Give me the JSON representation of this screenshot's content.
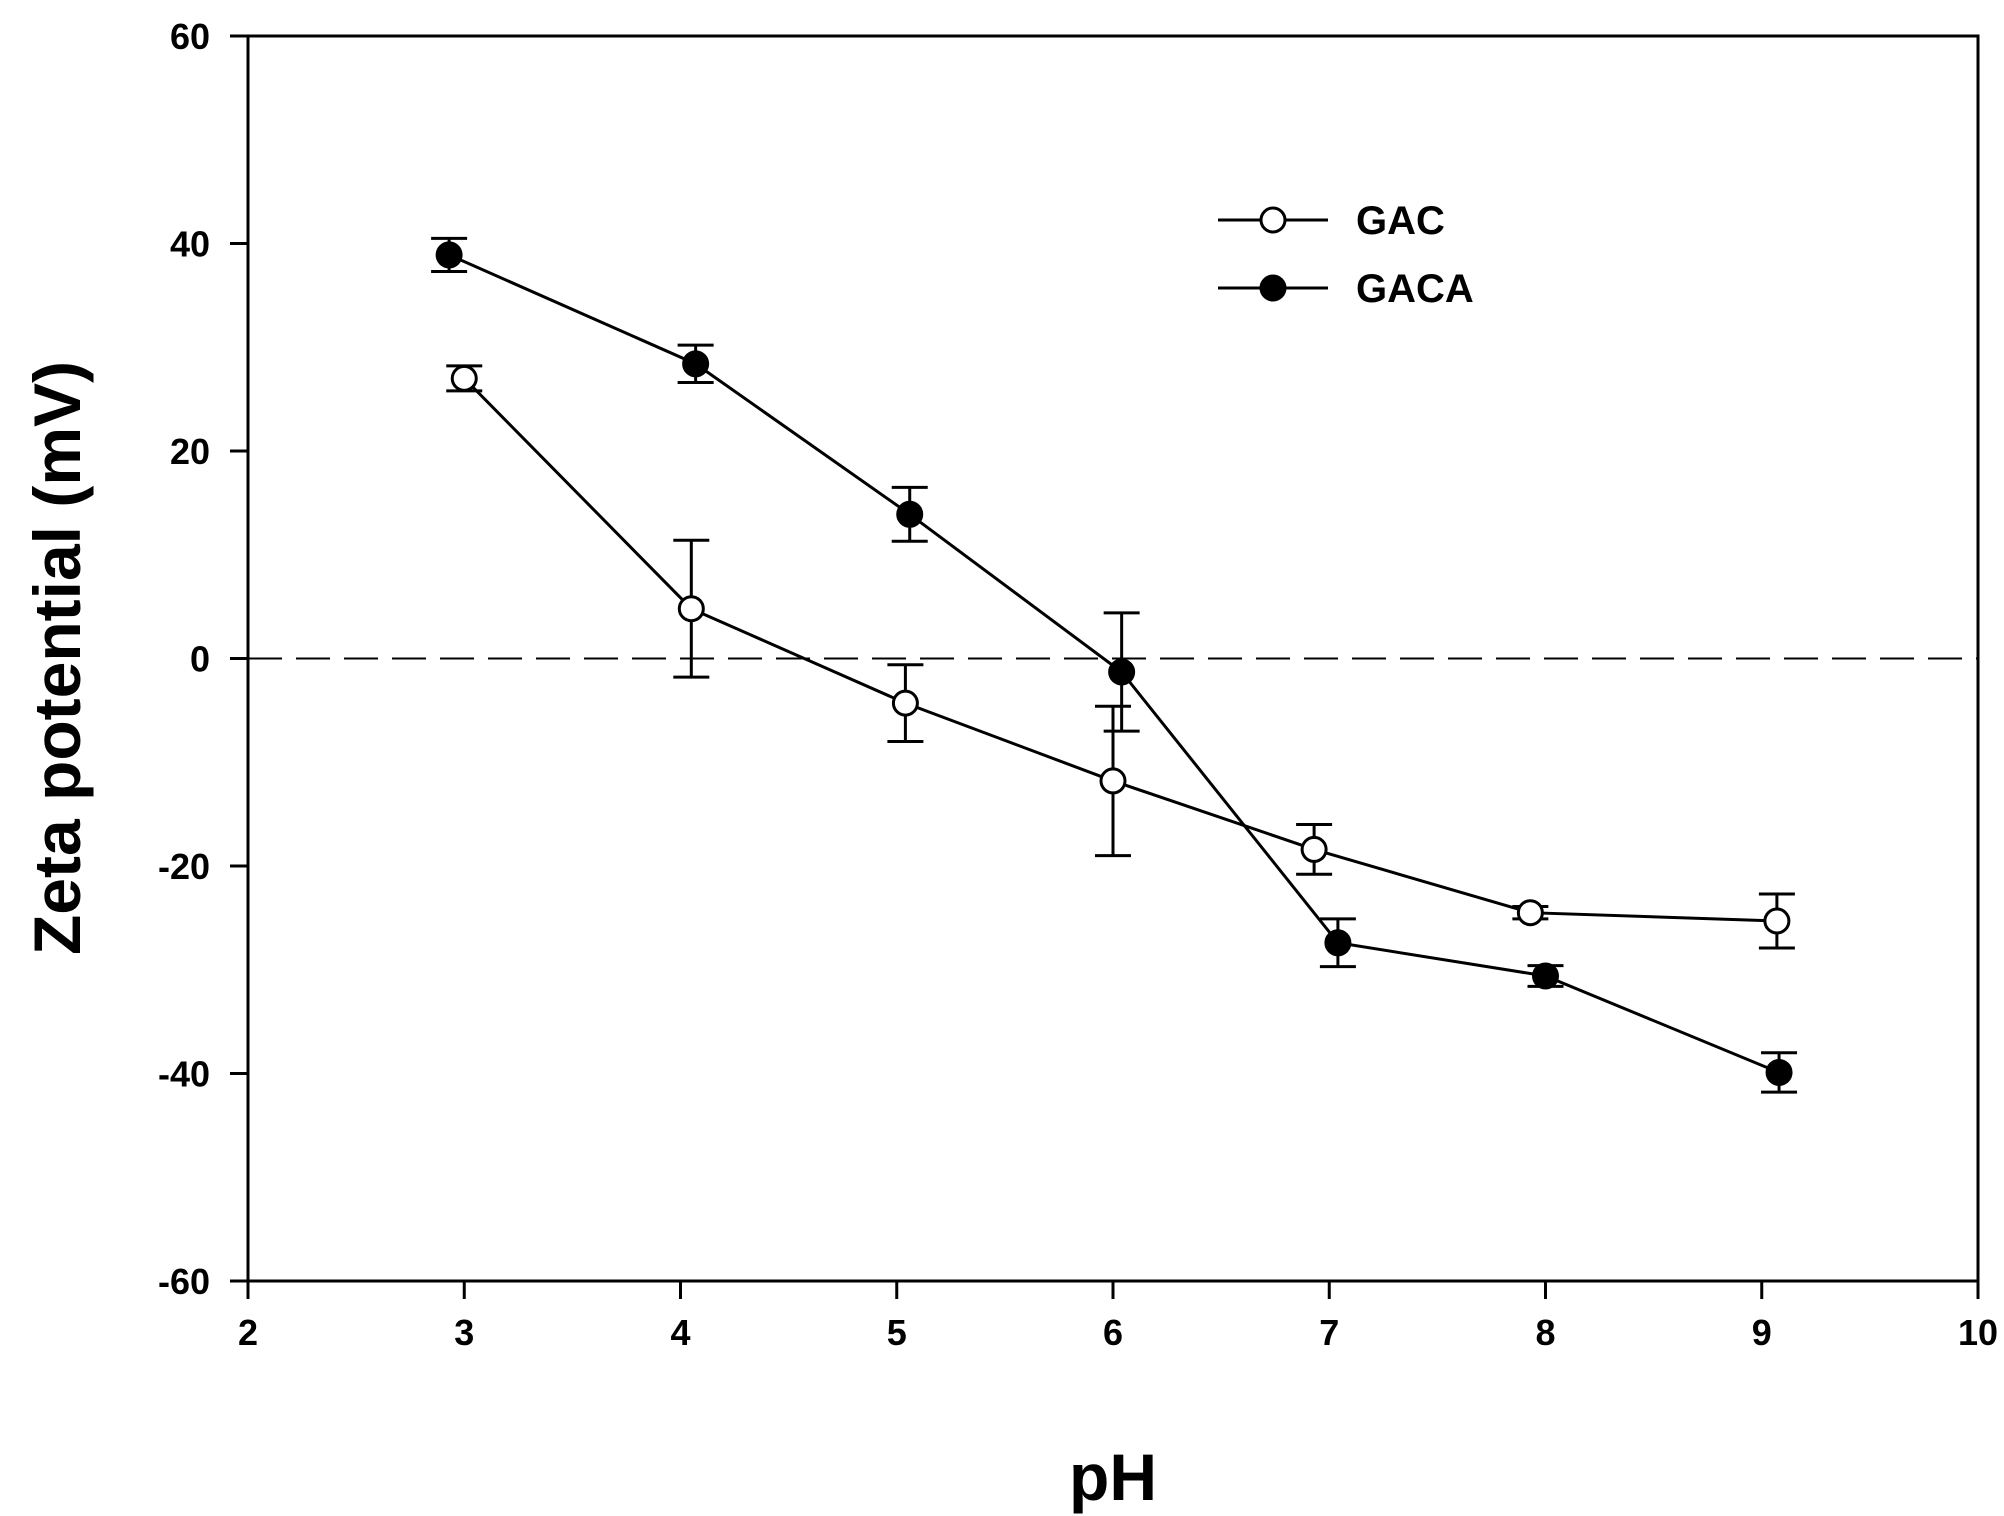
{
  "chart_data": {
    "type": "line",
    "title": "",
    "xlabel": "pH",
    "ylabel": "Zeta potential (mV)",
    "xlim": [
      2,
      10
    ],
    "ylim": [
      -60,
      60
    ],
    "xticks": [
      2,
      3,
      4,
      5,
      6,
      7,
      8,
      9,
      10
    ],
    "yticks": [
      -60,
      -40,
      -20,
      0,
      20,
      40,
      60
    ],
    "xtick_labels": [
      "2",
      "3",
      "4",
      "5",
      "6",
      "7",
      "8",
      "9",
      "10"
    ],
    "ytick_labels": [
      "-60",
      "-40",
      "-20",
      "0",
      "20",
      "40",
      "60"
    ],
    "reference_line": {
      "y": 0,
      "style": "dashed"
    },
    "legend_position": "top-right",
    "series": [
      {
        "name": "GAC",
        "marker": "open-circle",
        "x": [
          3.0,
          4.05,
          5.04,
          6.0,
          6.93,
          7.93,
          9.07
        ],
        "y": [
          27.0,
          4.8,
          -4.3,
          -11.8,
          -18.4,
          -24.5,
          -25.3
        ],
        "err": [
          1.2,
          6.6,
          3.7,
          7.2,
          2.4,
          0.6,
          2.6
        ]
      },
      {
        "name": "GACA",
        "marker": "filled-circle",
        "x": [
          2.93,
          4.07,
          5.06,
          6.04,
          7.04,
          8.0,
          9.08
        ],
        "y": [
          38.9,
          28.4,
          13.9,
          -1.3,
          -27.4,
          -30.6,
          -39.9
        ],
        "err": [
          1.6,
          1.8,
          2.6,
          5.7,
          2.3,
          1.0,
          1.9
        ]
      }
    ]
  },
  "colors": {
    "axis": "#000000",
    "line": "#000000",
    "open_marker_fill": "#ffffff",
    "filled_marker_fill": "#000000"
  }
}
